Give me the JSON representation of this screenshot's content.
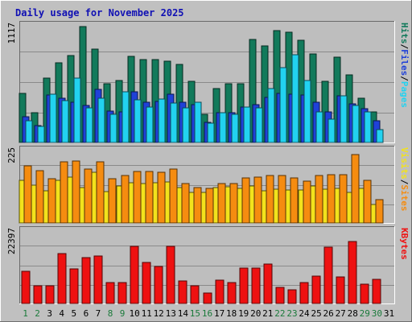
{
  "title": "Daily usage for November 2025",
  "colors": {
    "background": "#c0c0c0",
    "plot_bg": "#bebebe",
    "hits": "#127a5b",
    "files": "#1f41d8",
    "pages": "#22d2f0",
    "visits": "#f2e21c",
    "sites": "#f58c10",
    "kbytes": "#ee1111",
    "title_text": "#1010b4",
    "weekend_label": "#1a7a3a",
    "weekday_label": "#000000"
  },
  "chart_data": [
    {
      "type": "bar",
      "panel": "hits-files-pages",
      "ymax_label": "1117",
      "ymax": 1117,
      "label_parts": [
        {
          "text": "Hits",
          "key": "hits"
        },
        {
          "text": "/",
          "key": "sep"
        },
        {
          "text": "Files",
          "key": "files"
        },
        {
          "text": "/",
          "key": "sep"
        },
        {
          "text": "Pages",
          "key": "pages"
        }
      ],
      "series": [
        {
          "name": "Hits",
          "color_key": "hits",
          "values": [
            470,
            285,
            610,
            755,
            825,
            1100,
            890,
            555,
            590,
            820,
            790,
            790,
            770,
            745,
            580,
            265,
            515,
            560,
            555,
            980,
            915,
            1065,
            1050,
            975,
            845,
            580,
            810,
            645,
            420,
            290
          ]
        },
        {
          "name": "Files",
          "color_key": "files",
          "values": [
            245,
            160,
            450,
            420,
            380,
            350,
            505,
            295,
            290,
            480,
            380,
            390,
            460,
            380,
            360,
            190,
            285,
            285,
            340,
            360,
            430,
            465,
            460,
            455,
            385,
            290,
            440,
            365,
            320,
            205
          ]
        },
        {
          "name": "Pages",
          "color_key": "pages",
          "values": [
            210,
            155,
            460,
            400,
            615,
            330,
            420,
            270,
            485,
            405,
            340,
            410,
            375,
            330,
            380,
            180,
            280,
            270,
            340,
            330,
            510,
            710,
            835,
            590,
            290,
            225,
            440,
            355,
            290,
            125
          ]
        }
      ]
    },
    {
      "type": "bar",
      "panel": "visits-sites",
      "ymax_label": "225",
      "ymax": 225,
      "label_parts": [
        {
          "text": "Visits",
          "key": "visits"
        },
        {
          "text": "/",
          "key": "sep"
        },
        {
          "text": "Sites",
          "key": "sites"
        }
      ],
      "series": [
        {
          "name": "Visits",
          "color_key": "visits",
          "values": [
            130,
            115,
            98,
            131,
            140,
            108,
            156,
            96,
            114,
            123,
            122,
            124,
            127,
            110,
            93,
            94,
            110,
            111,
            106,
            113,
            98,
            104,
            102,
            102,
            114,
            105,
            106,
            95,
            107,
            58
          ]
        },
        {
          "name": "Sites",
          "color_key": "sites",
          "values": [
            175,
            160,
            137,
            188,
            190,
            165,
            187,
            135,
            146,
            158,
            158,
            157,
            165,
            120,
            108,
            106,
            122,
            120,
            138,
            142,
            147,
            147,
            138,
            128,
            145,
            148,
            148,
            209,
            130,
            72
          ]
        }
      ]
    },
    {
      "type": "bar",
      "panel": "kbytes",
      "ymax_label": "22397",
      "ymax": 22397,
      "label_parts": [
        {
          "text": "KBytes",
          "key": "kbytes"
        }
      ],
      "series": [
        {
          "name": "KBytes",
          "color_key": "kbytes",
          "values": [
            9800,
            5300,
            5300,
            15300,
            10500,
            14000,
            14500,
            6500,
            6400,
            17500,
            12500,
            11400,
            17400,
            6900,
            5400,
            3100,
            7100,
            6500,
            10900,
            10800,
            12100,
            4800,
            4100,
            6400,
            8400,
            17300,
            8100,
            18900,
            5800,
            7400
          ]
        }
      ]
    }
  ],
  "days": [
    {
      "label": "1",
      "weekend": true
    },
    {
      "label": "2",
      "weekend": true
    },
    {
      "label": "3",
      "weekend": false
    },
    {
      "label": "4",
      "weekend": false
    },
    {
      "label": "5",
      "weekend": false
    },
    {
      "label": "6",
      "weekend": false
    },
    {
      "label": "7",
      "weekend": false
    },
    {
      "label": "8",
      "weekend": true
    },
    {
      "label": "9",
      "weekend": true
    },
    {
      "label": "10",
      "weekend": false
    },
    {
      "label": "11",
      "weekend": false
    },
    {
      "label": "12",
      "weekend": false
    },
    {
      "label": "13",
      "weekend": false
    },
    {
      "label": "14",
      "weekend": false
    },
    {
      "label": "15",
      "weekend": true
    },
    {
      "label": "16",
      "weekend": true
    },
    {
      "label": "17",
      "weekend": false
    },
    {
      "label": "18",
      "weekend": false
    },
    {
      "label": "19",
      "weekend": false
    },
    {
      "label": "20",
      "weekend": false
    },
    {
      "label": "21",
      "weekend": false
    },
    {
      "label": "22",
      "weekend": true
    },
    {
      "label": "23",
      "weekend": true
    },
    {
      "label": "24",
      "weekend": false
    },
    {
      "label": "25",
      "weekend": false
    },
    {
      "label": "26",
      "weekend": false
    },
    {
      "label": "27",
      "weekend": false
    },
    {
      "label": "28",
      "weekend": false
    },
    {
      "label": "29",
      "weekend": true
    },
    {
      "label": "30",
      "weekend": true
    },
    {
      "label": "31",
      "weekend": false
    }
  ]
}
